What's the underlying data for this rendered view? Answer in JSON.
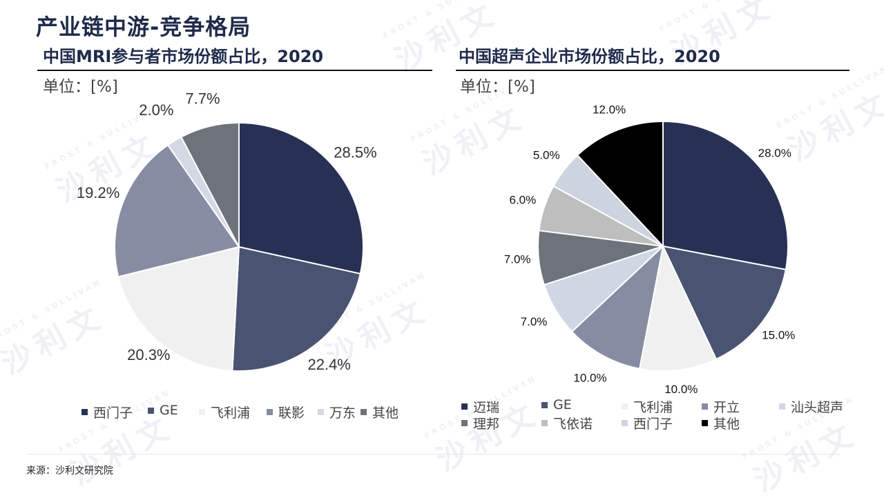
{
  "page": {
    "title": "产业链中游-竞争格局",
    "source": "来源：沙利文研究院"
  },
  "chart_data": [
    {
      "type": "pie",
      "title": "中国MRI参与者市场份额占比，2020",
      "unit_label": "单位：[%]",
      "categories": [
        "西门子",
        "GE",
        "飞利浦",
        "联影",
        "万东",
        "其他"
      ],
      "values": [
        28.5,
        22.4,
        20.3,
        19.2,
        2.0,
        7.7
      ],
      "value_labels": [
        "28.5%",
        "22.4%",
        "20.3%",
        "19.2%",
        "2.0%",
        "7.7%"
      ],
      "colors": [
        "#283154",
        "#4a5371",
        "#f0f0f0",
        "#868da3",
        "#d4d8e4",
        "#6e727b"
      ],
      "legend_position": "bottom"
    },
    {
      "type": "pie",
      "title": "中国超声企业市场份额占比，2020",
      "unit_label": "单位：[%]",
      "categories": [
        "迈瑞",
        "GE",
        "飞利浦",
        "开立",
        "汕头超声",
        "理邦",
        "飞依诺",
        "西门子",
        "其他"
      ],
      "values": [
        28.0,
        15.0,
        10.0,
        10.0,
        7.0,
        7.0,
        6.0,
        5.0,
        12.0
      ],
      "value_labels": [
        "28.0%",
        "15.0%",
        "10.0%",
        "10.0%",
        "7.0%",
        "7.0%",
        "6.0%",
        "5.0%",
        "12.0%"
      ],
      "colors": [
        "#283154",
        "#4a5371",
        "#f0f0f0",
        "#868da3",
        "#d0d6e4",
        "#6e727b",
        "#bebebe",
        "#cdd3df",
        "#000000"
      ],
      "legend_position": "bottom"
    }
  ],
  "watermark": {
    "text": "沙利文",
    "subtext": "FROST & SULLIVAN"
  }
}
